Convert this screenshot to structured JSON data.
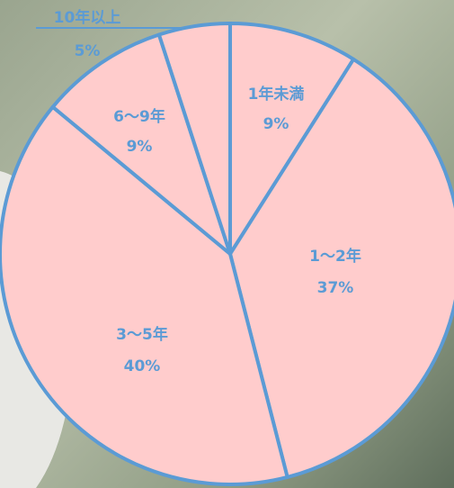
{
  "chart_data": {
    "type": "pie",
    "categories": [
      "1年未満",
      "1～2年",
      "3～5年",
      "6～9年",
      "10年以上"
    ],
    "values": [
      9,
      37,
      40,
      9,
      5
    ],
    "value_labels": [
      "9%",
      "37%",
      "40%",
      "9%",
      "5%"
    ],
    "color": "#ffcccc",
    "edge_color": "#5b9bd5"
  }
}
